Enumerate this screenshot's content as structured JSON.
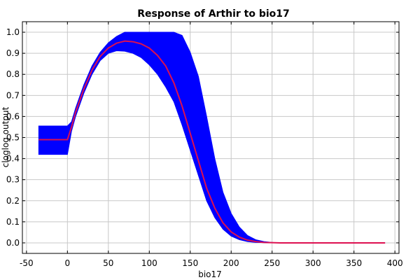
{
  "chart_data": {
    "type": "line",
    "title": "Response of Arthir to bio17",
    "xlabel": "bio17",
    "ylabel": "cloglog output",
    "xlim": [
      -55,
      405
    ],
    "ylim": [
      -0.05,
      1.05
    ],
    "grid": true,
    "x_ticks": [
      -50,
      0,
      50,
      100,
      150,
      200,
      250,
      300,
      350,
      400
    ],
    "x_tick_labels": [
      "-50",
      "0",
      "50",
      "100",
      "150",
      "200",
      "250",
      "300",
      "350",
      "400"
    ],
    "y_ticks": [
      0.0,
      0.1,
      0.2,
      0.3,
      0.4,
      0.5,
      0.6,
      0.7,
      0.8,
      0.9,
      1.0
    ],
    "y_tick_labels": [
      "0.0",
      "0.1",
      "0.2",
      "0.3",
      "0.4",
      "0.5",
      "0.6",
      "0.7",
      "0.8",
      "0.9",
      "1.0"
    ],
    "x": [
      -35,
      0,
      5,
      10,
      20,
      30,
      40,
      50,
      60,
      70,
      80,
      90,
      100,
      110,
      120,
      130,
      140,
      150,
      160,
      170,
      180,
      190,
      200,
      210,
      220,
      230,
      240,
      250,
      260,
      270,
      280,
      300,
      350,
      388
    ],
    "mean": [
      0.49,
      0.49,
      0.55,
      0.62,
      0.73,
      0.82,
      0.885,
      0.925,
      0.948,
      0.958,
      0.955,
      0.945,
      0.925,
      0.89,
      0.84,
      0.76,
      0.65,
      0.52,
      0.39,
      0.26,
      0.165,
      0.095,
      0.052,
      0.027,
      0.013,
      0.006,
      0.002,
      0.001,
      0.0,
      0.0,
      0.0,
      0.0,
      0.0,
      0.0
    ],
    "lower": [
      0.42,
      0.42,
      0.53,
      0.6,
      0.71,
      0.8,
      0.865,
      0.9,
      0.912,
      0.91,
      0.9,
      0.88,
      0.845,
      0.8,
      0.74,
      0.67,
      0.56,
      0.44,
      0.32,
      0.2,
      0.12,
      0.065,
      0.032,
      0.015,
      0.006,
      0.002,
      0.001,
      0.0,
      0.0,
      0.0,
      0.0,
      0.0,
      0.0,
      0.0
    ],
    "upper": [
      0.555,
      0.555,
      0.575,
      0.64,
      0.75,
      0.84,
      0.905,
      0.95,
      0.98,
      1.0,
      1.0,
      1.0,
      1.0,
      1.0,
      1.0,
      1.0,
      0.985,
      0.905,
      0.79,
      0.6,
      0.4,
      0.24,
      0.14,
      0.075,
      0.035,
      0.015,
      0.006,
      0.002,
      0.0,
      0.0,
      0.0,
      0.0,
      0.0,
      0.0
    ],
    "mean_color": "#dd1050",
    "band_color": "#0000ff"
  }
}
